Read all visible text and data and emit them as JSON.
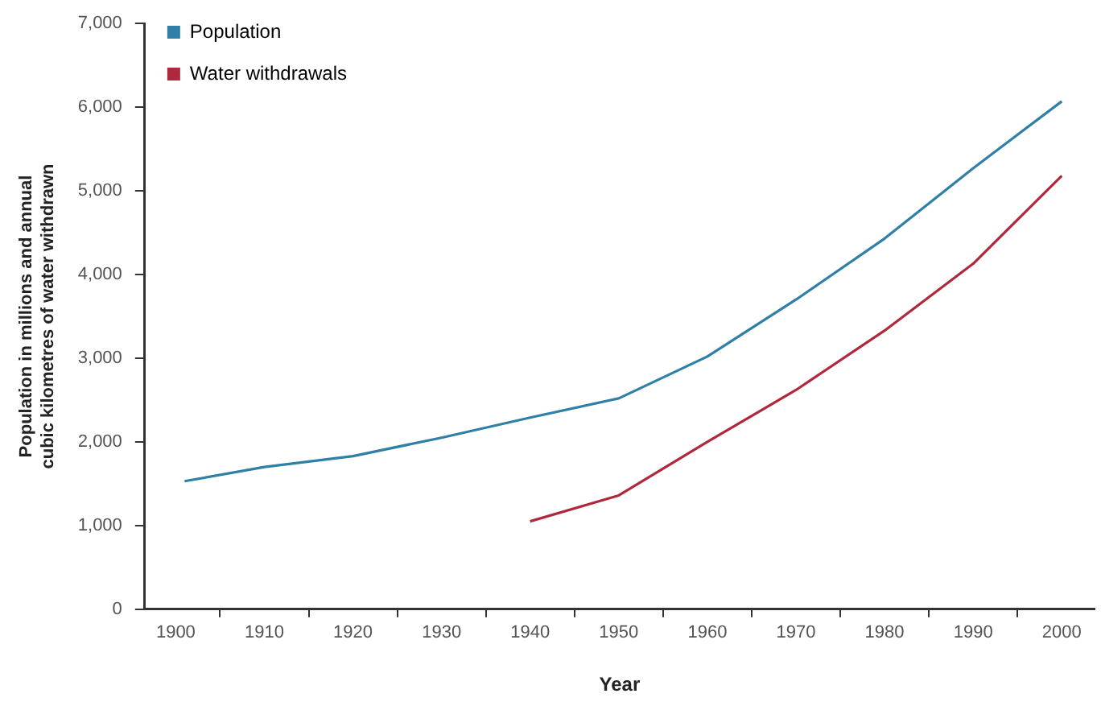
{
  "chart_data": {
    "type": "line",
    "xlabel": "Year",
    "ylabel": "Population in millions and annual cubic kilometres of water withdrawn",
    "xlim": [
      1896.5,
      2003.7
    ],
    "xticks": [
      1900,
      {
        "value": 1905,
        "label": null
      },
      1910,
      {
        "value": 1915,
        "label": null
      },
      1920,
      {
        "value": 1925,
        "label": null
      },
      1930,
      {
        "value": 1935,
        "label": null
      },
      1940,
      {
        "value": 1945,
        "label": null
      },
      1950,
      {
        "value": 1955,
        "label": null
      },
      1960,
      {
        "value": 1965,
        "label": null
      },
      1970,
      {
        "value": 1975,
        "label": null
      },
      1980,
      {
        "value": 1985,
        "label": null
      },
      1990,
      {
        "value": 1995,
        "label": null
      },
      2000
    ],
    "ylim": [
      0,
      7000
    ],
    "yticks": [
      0,
      {
        "value": 1000,
        "label": "1,000"
      },
      {
        "value": 2000,
        "label": "2,000"
      },
      {
        "value": 3000,
        "label": "3,000"
      },
      {
        "value": 4000,
        "label": "4,000"
      },
      {
        "value": 5000,
        "label": "5,000"
      },
      {
        "value": 6000,
        "label": "6,000"
      },
      {
        "value": 7000,
        "label": "7,000"
      }
    ],
    "grid": false,
    "legend": "top left",
    "marker": "none",
    "line_style": "solid",
    "series": [
      {
        "name": "Population",
        "color": "#2f7fa6",
        "x": [
          1901,
          1910,
          1920,
          1930,
          1940,
          1950,
          1960,
          1970,
          1980,
          1990,
          2000
        ],
        "values": [
          1530,
          1700,
          1830,
          2050,
          2290,
          2520,
          3020,
          3700,
          4430,
          5270,
          6070
        ]
      },
      {
        "name": "Water withdrawals",
        "color": "#b0283c",
        "x": [
          1940,
          1950,
          1960,
          1970,
          1980,
          1990,
          2000
        ],
        "values": [
          1050,
          1360,
          2000,
          2620,
          3330,
          4130,
          5180
        ]
      }
    ]
  }
}
